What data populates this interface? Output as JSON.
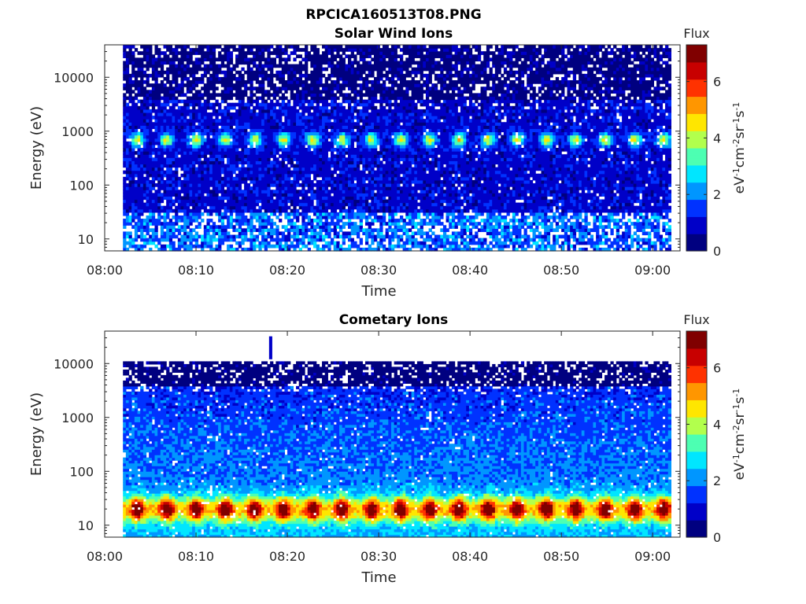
{
  "figure": {
    "title": "RPCICA160513T08.PNG"
  },
  "colors": {
    "colormap": [
      "#000080",
      "#0000c8",
      "#0032ff",
      "#0096ff",
      "#00e6ff",
      "#4dffb2",
      "#b2ff4d",
      "#ffe600",
      "#ff9600",
      "#ff3200",
      "#c80000",
      "#800000"
    ],
    "missing": "#ffffff",
    "axes": "#262626"
  },
  "chart_data": [
    {
      "type": "heatmap",
      "title": "Solar Wind Ions",
      "xlabel": "Time",
      "ylabel": "Energy (eV)",
      "yscale": "log",
      "xlim": [
        "08:00",
        "09:03"
      ],
      "ylim": [
        6,
        40000
      ],
      "x_ticks": [
        "08:00",
        "08:10",
        "08:20",
        "08:30",
        "08:40",
        "08:50",
        "09:00"
      ],
      "y_ticks": [
        10,
        100,
        1000,
        10000
      ],
      "y_tick_labels": [
        "10",
        "100",
        "1000",
        "10000"
      ],
      "data_start": "08:02",
      "data_end": "09:02",
      "colorbar": {
        "label": "Flux",
        "unit": "eV-1cm-2sr-1s-1",
        "range": [
          0,
          7.3
        ],
        "ticks": [
          0,
          2,
          4,
          6
        ]
      },
      "features": [
        {
          "description": "recurring solar wind proton peak",
          "energy_eV": 700,
          "peak_flux": 3.6,
          "period_min": 3.2
        },
        {
          "description": "background",
          "energy_range_eV": [
            6,
            40000
          ],
          "flux": 0.6
        }
      ],
      "grid": false
    },
    {
      "type": "heatmap",
      "title": "Cometary Ions",
      "xlabel": "Time",
      "ylabel": "Energy (eV)",
      "yscale": "log",
      "xlim": [
        "08:00",
        "09:03"
      ],
      "ylim": [
        6,
        40000
      ],
      "x_ticks": [
        "08:00",
        "08:10",
        "08:20",
        "08:30",
        "08:40",
        "08:50",
        "09:00"
      ],
      "y_ticks": [
        10,
        100,
        1000,
        10000
      ],
      "y_tick_labels": [
        "10",
        "100",
        "1000",
        "10000"
      ],
      "data_start": "08:02",
      "data_end": "09:02",
      "colorbar": {
        "label": "Flux",
        "unit": "eV-1cm-2sr-1s-1",
        "range": [
          0,
          7.3
        ],
        "ticks": [
          0,
          2,
          4,
          6
        ]
      },
      "features": [
        {
          "description": "recurring low-energy cometary ion peak",
          "energy_eV": 20,
          "peak_flux": 5.8,
          "period_min": 3.2
        },
        {
          "description": "background",
          "energy_range_eV": [
            6,
            11000
          ],
          "flux": 0.8
        },
        {
          "description": "isolated high-energy burst",
          "time": "08:18",
          "energy_eV": 20000,
          "flux": 0.9
        }
      ],
      "grid": false
    }
  ]
}
